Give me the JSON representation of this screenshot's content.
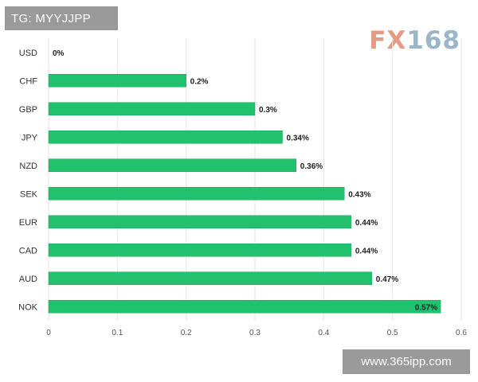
{
  "header": {
    "tag_text": "TG: MYYJJPP"
  },
  "logo": {
    "part1": "FX",
    "part2": "168"
  },
  "watermark": {
    "text": "www.365ipp.com"
  },
  "colors": {
    "bar": "#22c16e",
    "bar_stroke": "#1aa75d",
    "grid": "#e6e6e6"
  },
  "chart_data": {
    "type": "bar",
    "orientation": "horizontal",
    "categories": [
      "USD",
      "CHF",
      "GBP",
      "JPY",
      "NZD",
      "SEK",
      "EUR",
      "CAD",
      "AUD",
      "NOK"
    ],
    "values": [
      0,
      0.2,
      0.3,
      0.34,
      0.36,
      0.43,
      0.44,
      0.44,
      0.47,
      0.57
    ],
    "value_labels": [
      "0%",
      "0.2%",
      "0.3%",
      "0.34%",
      "0.36%",
      "0.43%",
      "0.44%",
      "0.44%",
      "0.47%",
      "0.57%"
    ],
    "x_ticks": [
      0,
      0.1,
      0.2,
      0.3,
      0.4,
      0.5,
      0.6
    ],
    "x_tick_labels": [
      "0",
      "0.1",
      "0.2",
      "0.3",
      "0.4",
      "0.5",
      "0.6"
    ],
    "xlim": [
      0,
      0.6
    ],
    "grid": true,
    "title": "",
    "xlabel": "",
    "ylabel": ""
  }
}
